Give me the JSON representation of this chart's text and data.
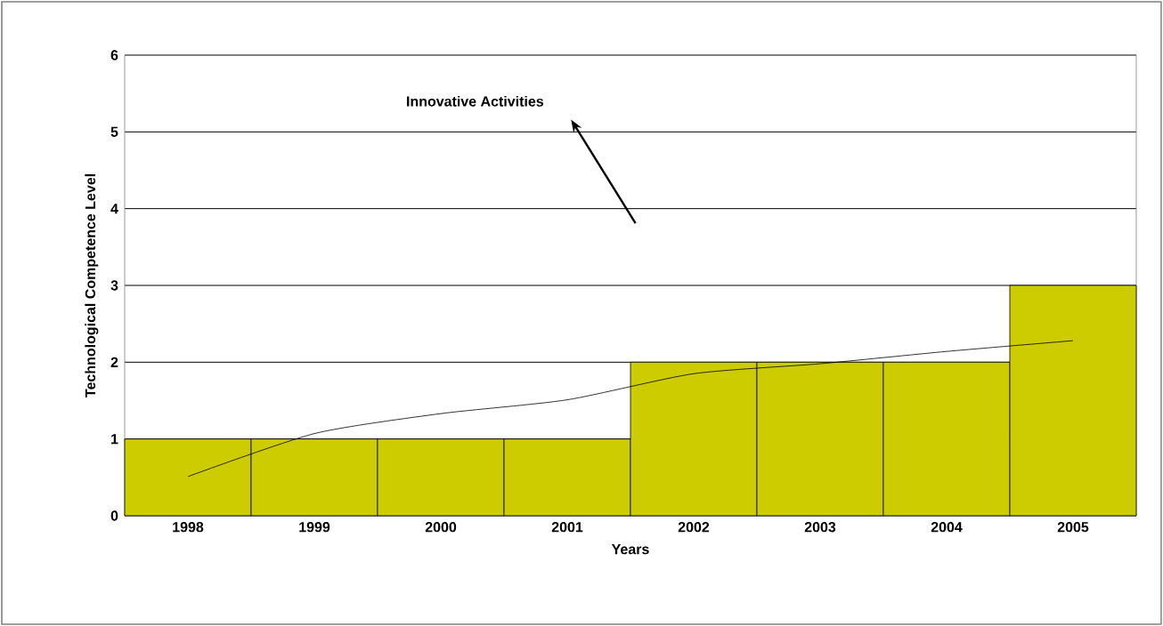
{
  "chart_data": {
    "type": "bar",
    "xlabel": "Years",
    "ylabel": "Technological Competence Level",
    "categories": [
      "1998",
      "1999",
      "2000",
      "2001",
      "2002",
      "2003",
      "2004",
      "2005"
    ],
    "series": [
      {
        "color": "#cccc00",
        "values": [
          1,
          1,
          1,
          1,
          2,
          2,
          2,
          3
        ]
      },
      {
        "type": "line",
        "color": "#000000",
        "values": [
          0.51,
          1.07,
          1.33,
          1.51,
          1.85,
          1.98,
          2.14,
          2.28
        ]
      }
    ],
    "ylim": [
      0,
      6
    ],
    "yticks": [
      0,
      1,
      2,
      3,
      4,
      5,
      6
    ],
    "grid": "y",
    "annotations": [
      "Innovative Activities"
    ]
  }
}
